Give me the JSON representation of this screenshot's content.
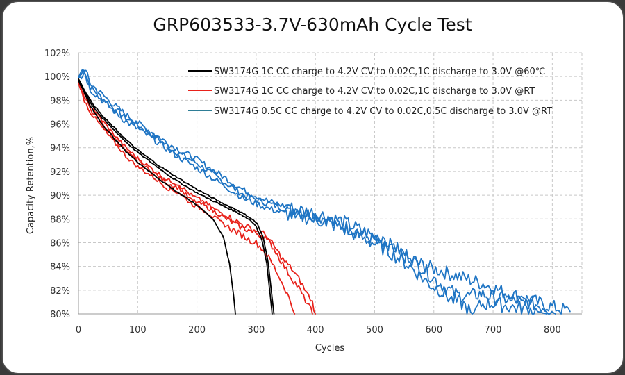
{
  "chart_data": {
    "type": "line",
    "title": "GRP603533-3.7V-630mAh Cycle Test",
    "xlabel": "Cycles",
    "ylabel": "Capacity Retention,%",
    "xlim": [
      0,
      850
    ],
    "ylim": [
      80,
      102
    ],
    "x_ticks": [
      0,
      100,
      200,
      300,
      400,
      500,
      600,
      700,
      800
    ],
    "x_tick_labels": [
      "0",
      "100",
      "200",
      "300",
      "400",
      "500",
      "600",
      "700",
      "800"
    ],
    "y_ticks": [
      80,
      82,
      84,
      86,
      88,
      90,
      92,
      94,
      96,
      98,
      100,
      102
    ],
    "y_tick_labels": [
      "80%",
      "82%",
      "84%",
      "86%",
      "88%",
      "90%",
      "92%",
      "94%",
      "96%",
      "98%",
      "100%",
      "102%"
    ],
    "grid": true,
    "legend_position": "top-right",
    "series": [
      {
        "name": "SW3174G 1C CC charge to 4.2V CV to 0.02C,1C discharge to 3.0V @60℃",
        "color": "#000000",
        "legend_color": "#000000",
        "curves": [
          {
            "x": [
              0,
              10,
              20,
              40,
              60,
              80,
              100,
              130,
              160,
              190,
              210,
              230,
              245,
              255,
              262,
              265
            ],
            "y": [
              99.7,
              98.6,
              97.5,
              96.0,
              94.8,
              93.7,
              92.8,
              91.6,
              90.5,
              89.5,
              88.8,
              87.8,
              86.4,
              84.2,
              81.5,
              80.0
            ]
          },
          {
            "x": [
              0,
              10,
              20,
              40,
              60,
              80,
              100,
              130,
              160,
              200,
              240,
              270,
              290,
              300,
              310,
              318,
              324,
              327
            ],
            "y": [
              99.7,
              98.8,
              97.8,
              96.5,
              95.5,
              94.5,
              93.6,
              92.5,
              91.4,
              90.2,
              89.2,
              88.5,
              87.9,
              87.4,
              86.2,
              84.2,
              81.5,
              80.0
            ]
          },
          {
            "x": [
              0,
              10,
              20,
              40,
              60,
              80,
              100,
              130,
              160,
              200,
              240,
              270,
              290,
              302,
              312,
              320,
              326,
              330
            ],
            "y": [
              99.8,
              98.9,
              98.0,
              96.7,
              95.7,
              94.7,
              93.8,
              92.7,
              91.7,
              90.5,
              89.4,
              88.7,
              88.1,
              87.6,
              86.4,
              84.4,
              81.8,
              80.0
            ]
          }
        ]
      },
      {
        "name": "SW3174G 1C CC charge to 4.2V CV to 0.02C,1C discharge to 3.0V @RT",
        "color": "#e8221b",
        "legend_color": "#e8221b",
        "curves": [
          {
            "x": [
              0,
              10,
              20,
              40,
              60,
              80,
              100,
              130,
              150,
              170,
              190,
              210,
              230,
              250,
              270,
              290,
              300,
              315,
              330,
              345,
              360,
              372,
              380,
              390,
              395
            ],
            "y": [
              99.5,
              98.2,
              97.3,
              96.0,
              94.8,
              93.7,
              92.8,
              91.8,
              91.0,
              90.6,
              89.6,
              89.2,
              88.6,
              88.0,
              87.4,
              87.0,
              86.8,
              86.5,
              85.5,
              84.2,
              83.0,
              82.2,
              81.4,
              80.6,
              80.0
            ]
          },
          {
            "x": [
              0,
              10,
              20,
              40,
              60,
              80,
              100,
              130,
              150,
              170,
              190,
              210,
              230,
              250,
              270,
              290,
              300,
              315,
              330,
              345,
              360,
              375,
              385,
              395,
              400
            ],
            "y": [
              99.6,
              98.4,
              97.6,
              96.3,
              95.1,
              94.0,
              93.1,
              92.0,
              91.3,
              90.9,
              90.0,
              89.5,
              88.8,
              88.3,
              87.7,
              87.2,
              87.0,
              86.7,
              85.7,
              84.6,
              83.8,
              82.7,
              81.8,
              81.0,
              80.0
            ]
          },
          {
            "x": [
              0,
              10,
              20,
              40,
              60,
              80,
              100,
              130,
              150,
              170,
              190,
              210,
              230,
              250,
              270,
              290,
              300,
              315,
              330,
              340,
              350,
              358,
              365
            ],
            "y": [
              99.4,
              98.0,
              97.0,
              95.7,
              94.5,
              93.3,
              92.4,
              91.4,
              90.6,
              90.2,
              89.3,
              88.8,
              88.1,
              87.4,
              86.8,
              86.2,
              86.0,
              85.2,
              84.0,
              83.0,
              82.0,
              81.0,
              80.0
            ]
          }
        ]
      },
      {
        "name": "SW3174G 0.5C CC charge to 4.2V CV to 0.02C,0.5C discharge to 3.0V @RT",
        "color": "#1f75c4",
        "legend_color": "#2e7d96",
        "curves": [
          {
            "x": [
              0,
              5,
              10,
              15,
              20,
              40,
              60,
              80,
              100,
              130,
              160,
              200,
              240,
              280,
              320,
              360,
              400,
              440,
              480,
              520,
              560,
              600,
              640,
              680,
              720,
              760,
              800,
              830
            ],
            "y": [
              99.9,
              100.5,
              100.6,
              99.8,
              99.1,
              98.2,
              97.3,
              96.5,
              95.9,
              94.9,
              93.8,
              92.7,
              91.3,
              90.0,
              89.3,
              88.7,
              88.3,
              87.6,
              86.7,
              85.8,
              84.5,
              83.8,
              83.2,
              82.6,
              81.8,
              81.2,
              80.6,
              80.2
            ]
          },
          {
            "x": [
              0,
              5,
              10,
              15,
              20,
              40,
              60,
              80,
              100,
              130,
              160,
              200,
              240,
              280,
              320,
              360,
              400,
              440,
              480,
              520,
              560,
              600,
              620,
              640,
              660,
              680,
              700,
              730,
              760,
              790,
              805
            ],
            "y": [
              99.9,
              100.3,
              100.7,
              100.1,
              99.4,
              98.5,
              97.6,
              96.8,
              96.1,
              95.1,
              94.1,
              93.0,
              91.7,
              90.4,
              89.5,
              88.9,
              88.5,
              87.9,
              87.0,
              86.0,
              84.8,
              83.0,
              82.2,
              81.6,
              81.5,
              81.7,
              81.4,
              81.2,
              81.0,
              80.5,
              80.0
            ]
          },
          {
            "x": [
              0,
              5,
              10,
              15,
              20,
              40,
              60,
              80,
              100,
              130,
              160,
              200,
              240,
              280,
              320,
              360,
              400,
              440,
              480,
              520,
              560,
              590,
              610,
              630,
              650,
              665,
              680,
              700,
              730,
              760,
              790
            ],
            "y": [
              99.9,
              100.0,
              100.4,
              99.6,
              98.9,
              98.0,
              97.1,
              96.2,
              95.6,
              94.6,
              93.5,
              92.3,
              91.0,
              89.7,
              88.9,
              88.3,
              88.0,
              87.3,
              86.4,
              85.4,
              84.0,
              82.6,
              82.0,
              81.2,
              80.8,
              80.0,
              80.8,
              80.9,
              80.6,
              80.4,
              80.0
            ]
          }
        ]
      }
    ]
  }
}
